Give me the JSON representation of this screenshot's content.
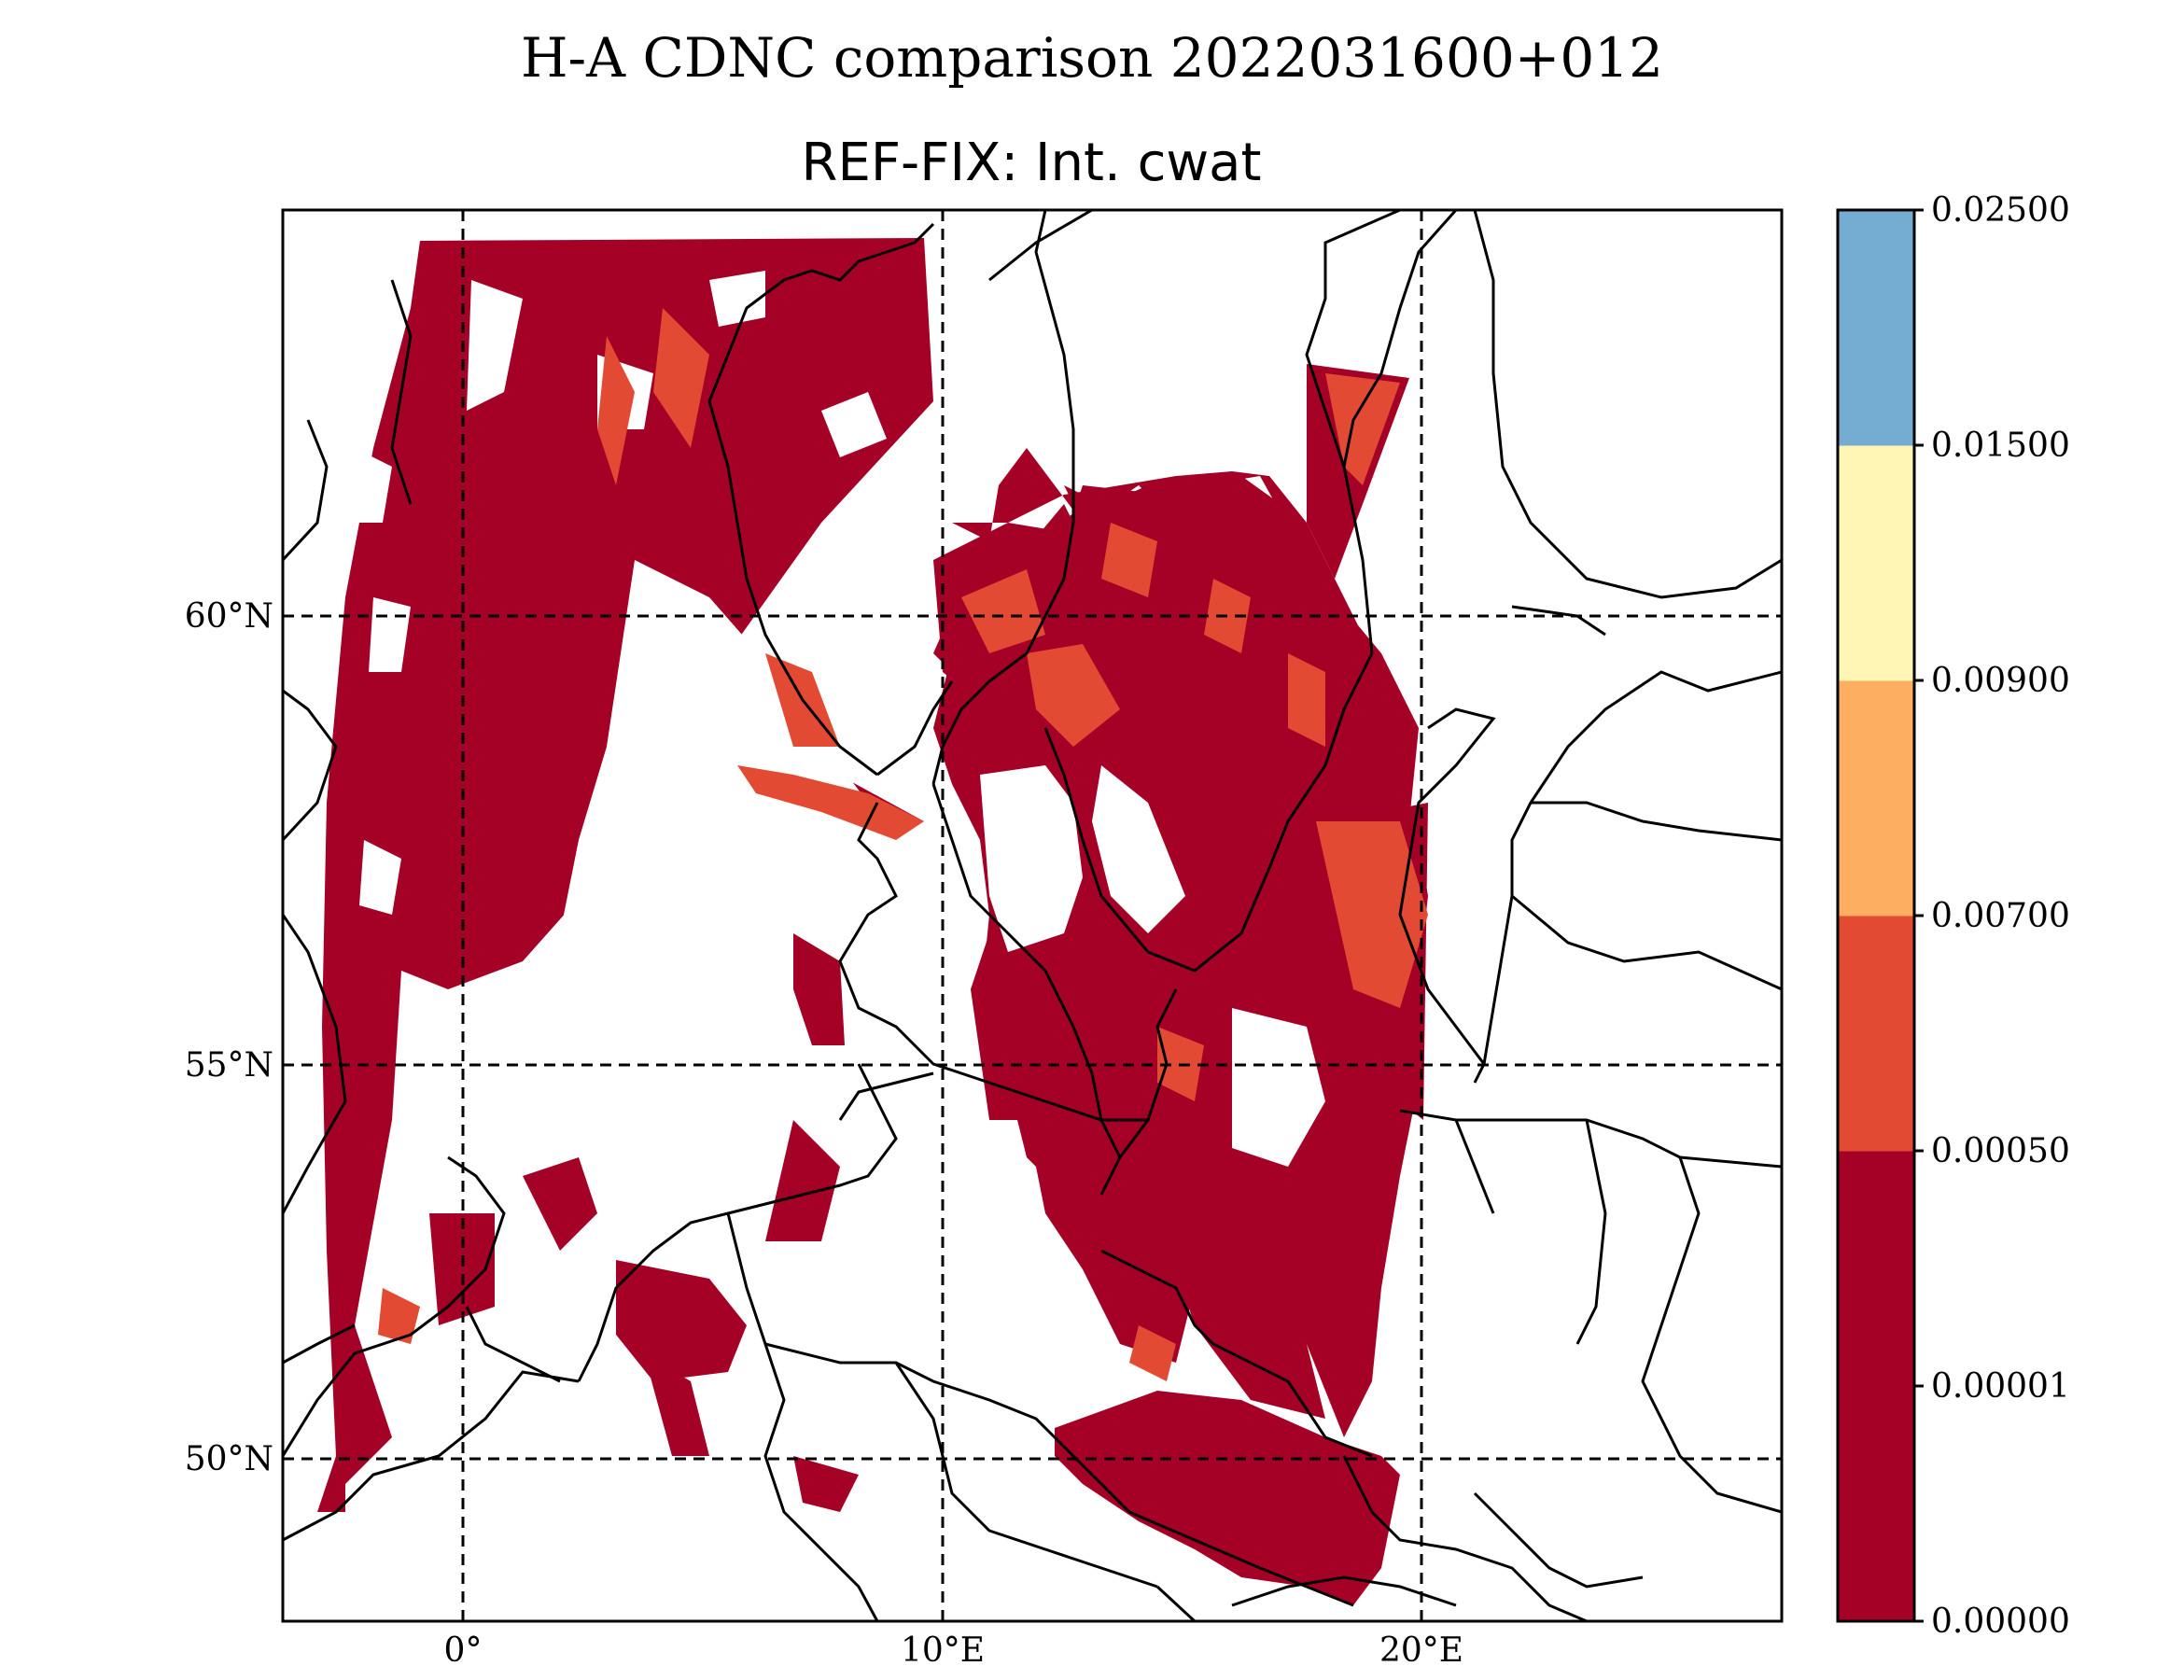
{
  "suptitle": "H-A CDNC comparison 2022031600+012",
  "title": "REF-FIX: Int. cwat",
  "lat_labels": [
    "60°N",
    "55°N",
    "50°N"
  ],
  "lon_labels": [
    "0°",
    "10°E",
    "20°E"
  ],
  "colorbar": {
    "levels": [
      "0.00000",
      "0.00001",
      "0.00050",
      "0.00700",
      "0.00900",
      "0.01500",
      "0.02500"
    ],
    "colors": [
      "#a50026",
      "#a50026",
      "#e34a33",
      "#fdae61",
      "#fff5b5",
      "#74add1"
    ]
  },
  "field_colors": {
    "low": "#a50026",
    "mid": "#e34a33"
  }
}
